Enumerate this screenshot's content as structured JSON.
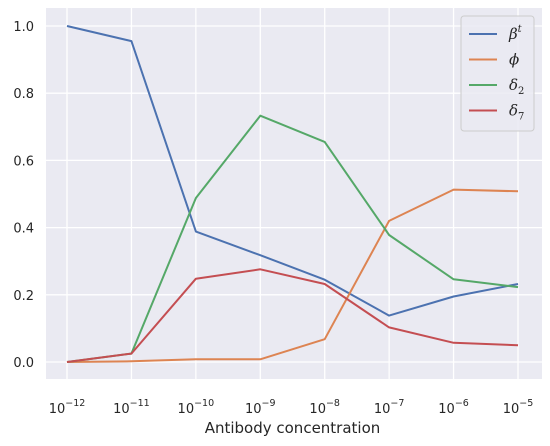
{
  "chart_data": {
    "type": "line",
    "xlabel": "Antibody concentration",
    "ylabel": "",
    "title": "",
    "x_scale": "log",
    "x": [
      1e-12,
      1e-11,
      1e-10,
      1e-09,
      1e-08,
      1e-07,
      1e-06,
      1e-05
    ],
    "x_tick_labels": [
      {
        "base": "10",
        "exp": "−12"
      },
      {
        "base": "10",
        "exp": "−11"
      },
      {
        "base": "10",
        "exp": "−10"
      },
      {
        "base": "10",
        "exp": "−9"
      },
      {
        "base": "10",
        "exp": "−8"
      },
      {
        "base": "10",
        "exp": "−7"
      },
      {
        "base": "10",
        "exp": "−6"
      },
      {
        "base": "10",
        "exp": "−5"
      }
    ],
    "ylim": [
      -0.05,
      1.05
    ],
    "y_ticks": [
      0.0,
      0.2,
      0.4,
      0.6,
      0.8,
      1.0
    ],
    "y_tick_labels": [
      "0.0",
      "0.2",
      "0.4",
      "0.6",
      "0.8",
      "1.0"
    ],
    "grid": true,
    "background": "#eaeaf2",
    "legend_position": "top-right",
    "series": [
      {
        "name": "β",
        "sup": "t",
        "sub": "",
        "color": "#4c72b0",
        "values": [
          1.0,
          0.955,
          0.388,
          0.318,
          0.245,
          0.138,
          0.195,
          0.232
        ]
      },
      {
        "name": "ϕ",
        "sup": "",
        "sub": "",
        "color": "#dd8452",
        "values": [
          0.0,
          0.002,
          0.008,
          0.008,
          0.068,
          0.42,
          0.513,
          0.508
        ]
      },
      {
        "name": "δ",
        "sup": "",
        "sub": "2",
        "color": "#55a868",
        "values": [
          0.0,
          0.025,
          0.488,
          0.733,
          0.655,
          0.378,
          0.246,
          0.223
        ]
      },
      {
        "name": "δ",
        "sup": "",
        "sub": "7",
        "color": "#c44e52",
        "values": [
          0.0,
          0.025,
          0.248,
          0.276,
          0.232,
          0.103,
          0.057,
          0.05
        ]
      }
    ]
  }
}
